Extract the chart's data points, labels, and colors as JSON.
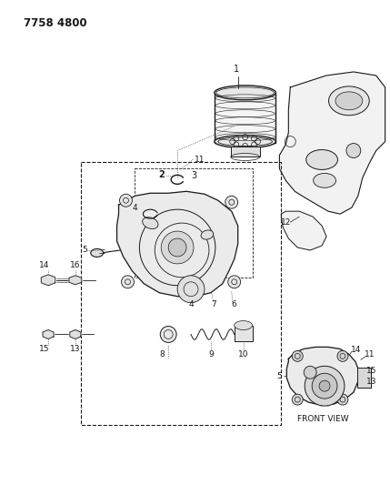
{
  "title": "7758 4800",
  "bg_color": "#ffffff",
  "line_color": "#1a1a1a",
  "fig_width": 4.29,
  "fig_height": 5.33,
  "dpi": 100,
  "title_fontsize": 8.5,
  "front_view_label": "FRONT VIEW"
}
